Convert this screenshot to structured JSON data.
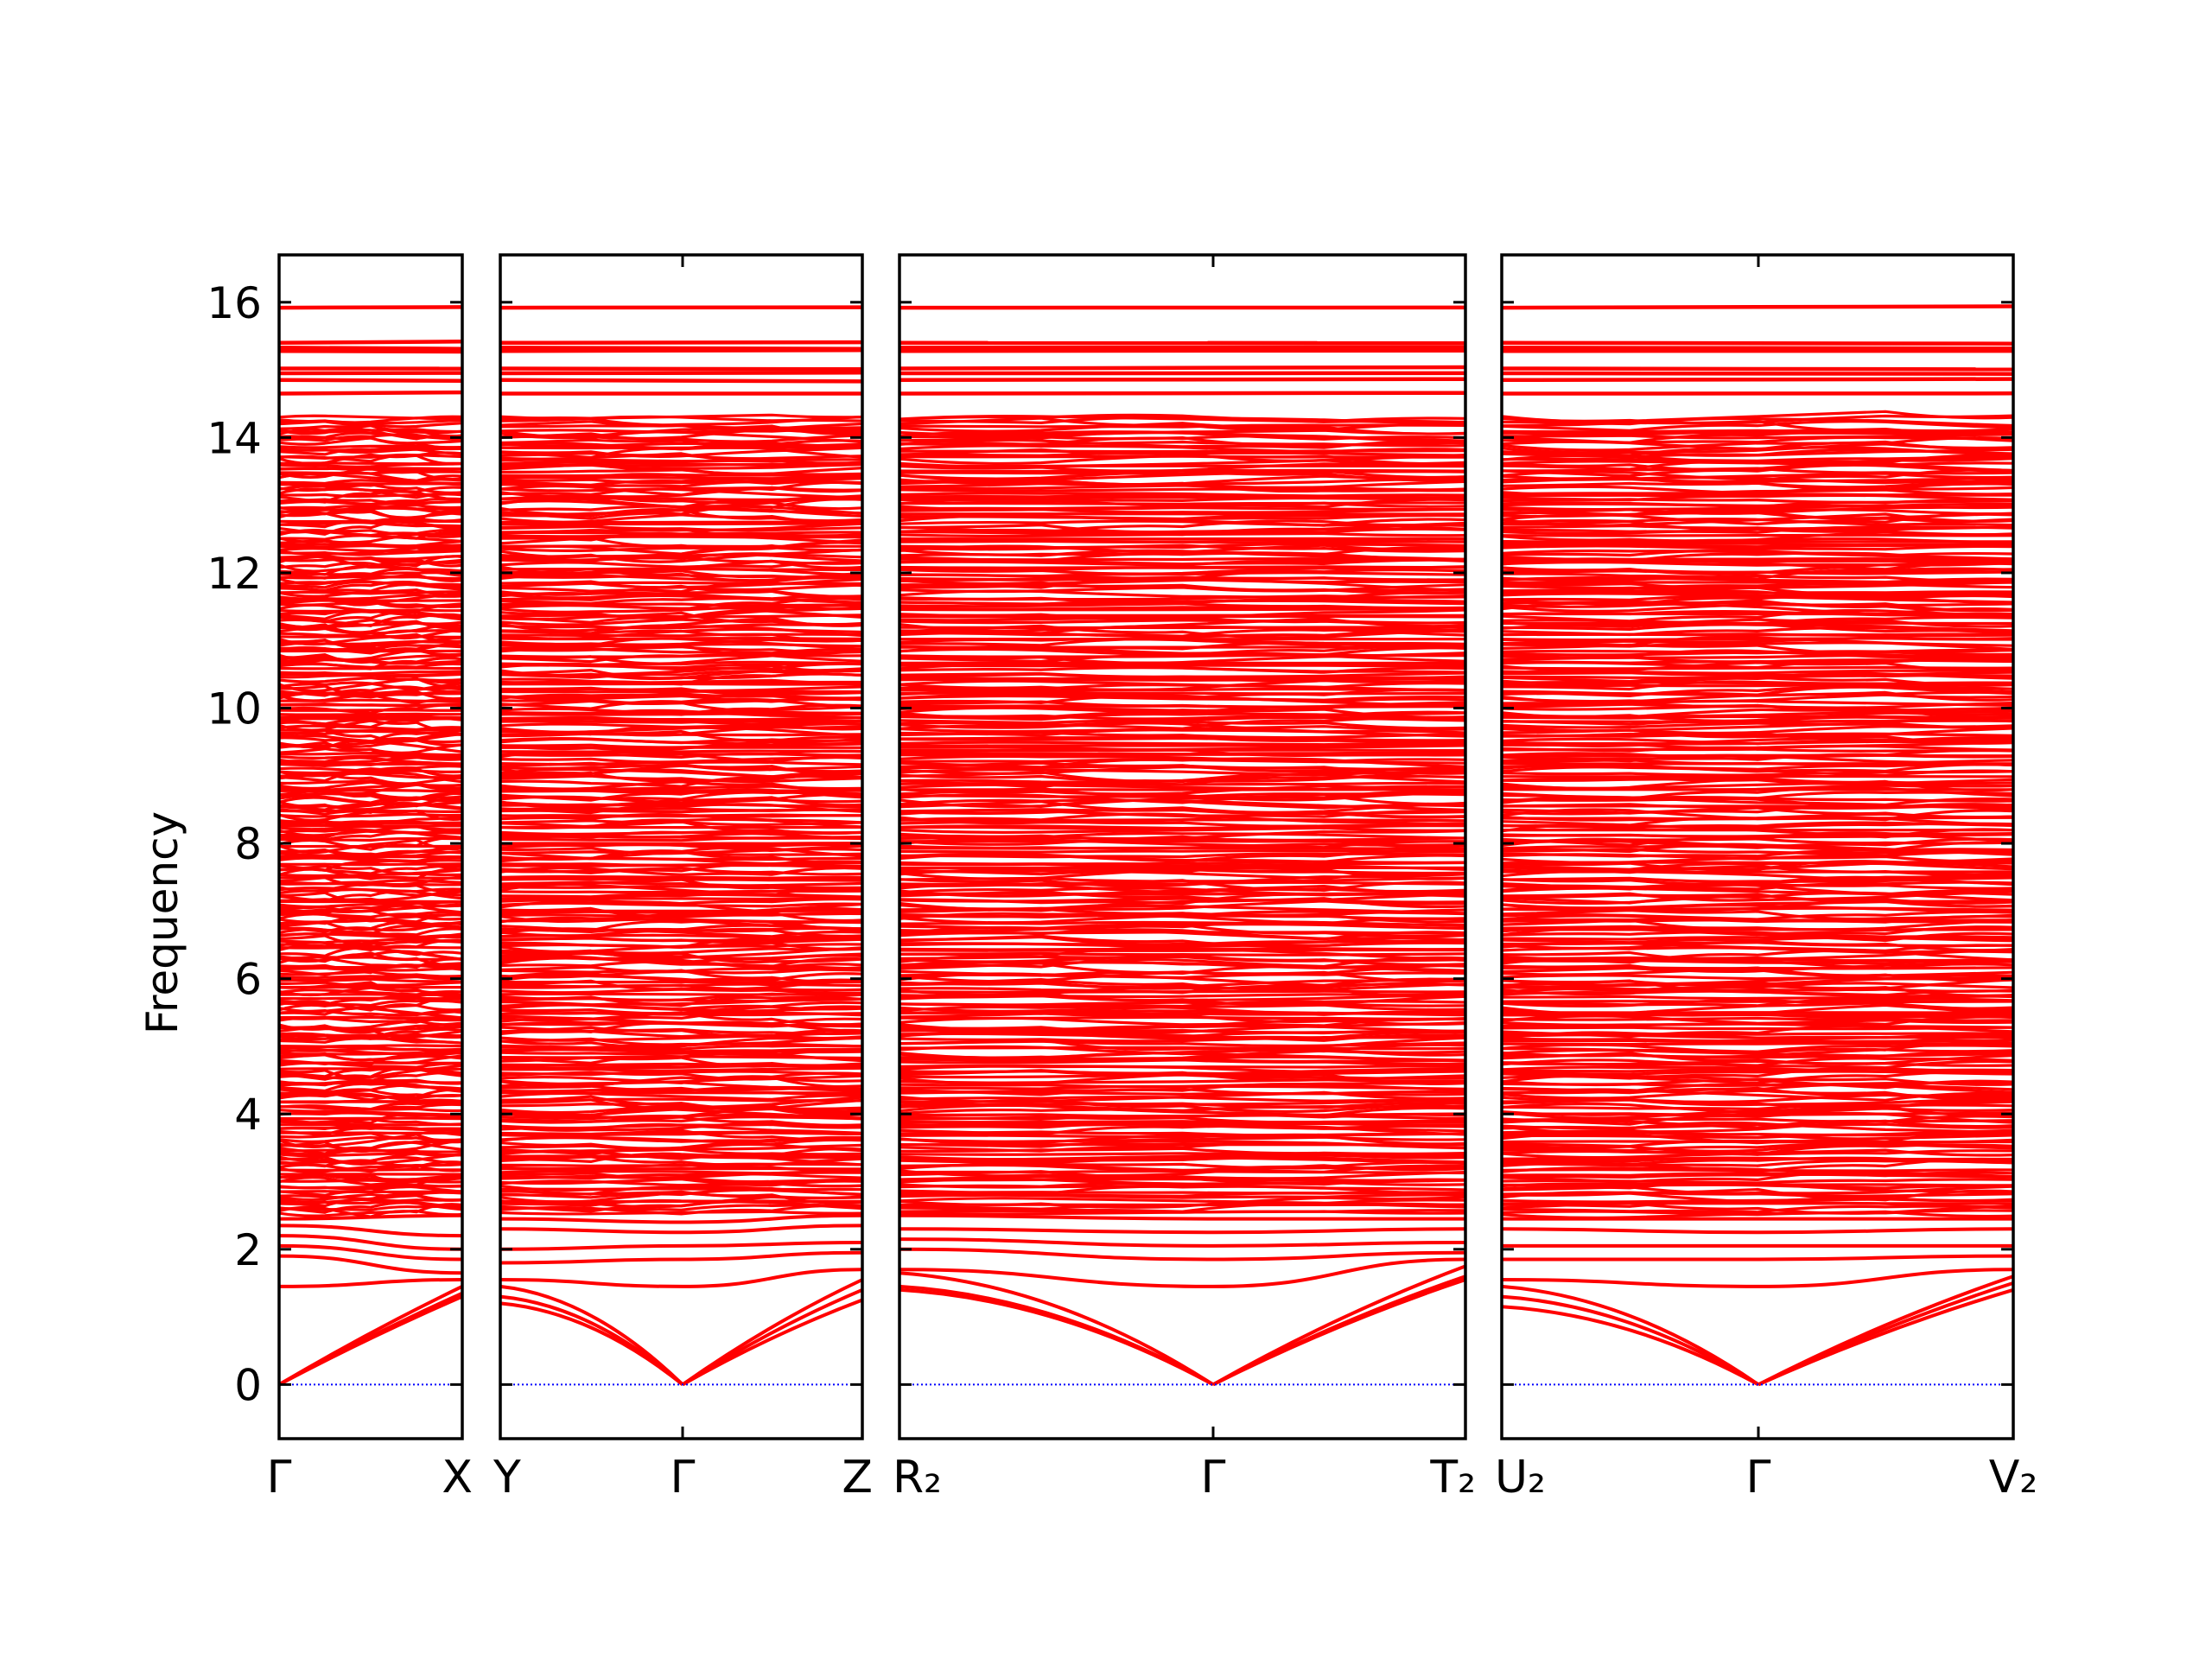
{
  "chart_data": {
    "type": "line",
    "title": "",
    "ylabel": "Frequency",
    "ylim": [
      -0.8,
      16.7
    ],
    "yticks": [
      "0",
      "2",
      "4",
      "6",
      "8",
      "10",
      "12",
      "14",
      "16"
    ],
    "grid": false,
    "legend": "none",
    "band_color": "#ff0000",
    "zero_line_color": "#0000ff",
    "panels": [
      {
        "qpoint_labels": [
          "Γ",
          "X"
        ],
        "acoustic_end": [
          1.3,
          1.35,
          1.45
        ],
        "optical_start": [
          1.45,
          1.9,
          2.05,
          2.2,
          2.35,
          2.45
        ],
        "optical_end": [
          1.55,
          1.65,
          1.85,
          2.0,
          2.2,
          2.5
        ]
      },
      {
        "qpoint_labels": [
          "Y",
          "Γ",
          "Z"
        ],
        "edge_left": [
          1.2,
          1.3,
          1.45,
          1.55,
          1.8,
          2.0,
          2.3,
          2.45
        ],
        "optical_gamma": [
          1.45,
          1.85,
          2.05,
          2.25,
          2.4
        ],
        "edge_right": [
          1.25,
          1.4,
          1.55,
          1.7,
          1.95,
          2.1,
          2.35,
          2.5
        ]
      },
      {
        "qpoint_labels": [
          "R₂",
          "Γ",
          "T₂"
        ],
        "edge_left": [
          1.4,
          1.45,
          1.65,
          1.7,
          2.0,
          2.15,
          2.3,
          2.5
        ],
        "optical_gamma": [
          1.45,
          1.85,
          2.05,
          2.25,
          2.45
        ],
        "edge_right": [
          1.55,
          1.6,
          1.75,
          1.85,
          1.95,
          2.1,
          2.3,
          2.45
        ]
      },
      {
        "qpoint_labels": [
          "U₂",
          "Γ",
          "V₂"
        ],
        "edge_left": [
          1.15,
          1.3,
          1.45,
          1.55,
          1.85,
          2.05,
          2.3,
          2.45
        ],
        "optical_gamma": [
          1.45,
          1.85,
          2.05,
          2.25,
          2.45
        ],
        "edge_right": [
          1.4,
          1.5,
          1.6,
          1.7,
          1.9,
          2.05,
          2.3,
          2.45
        ]
      }
    ],
    "upper_flat_bands": [
      14.65,
      14.85,
      14.95,
      15.02,
      15.28,
      15.33,
      15.4,
      15.92
    ],
    "dense_band_range": [
      2.5,
      14.3
    ]
  }
}
